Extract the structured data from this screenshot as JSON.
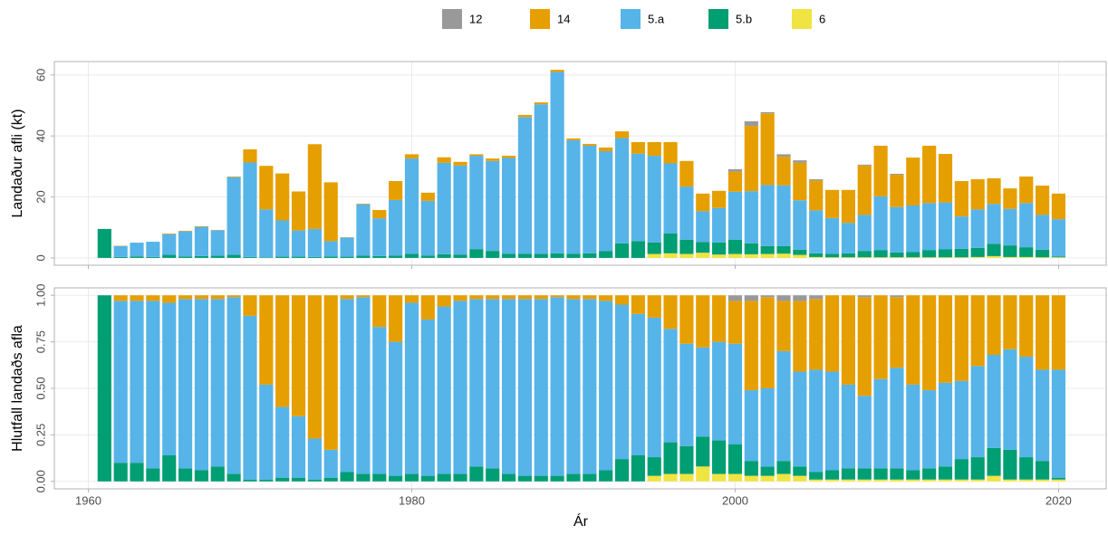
{
  "chart_data": [
    {
      "type": "bar",
      "stacked": true,
      "ylabel": "Landaður afli (kt)",
      "x": [
        1961,
        1962,
        1963,
        1964,
        1965,
        1966,
        1967,
        1968,
        1969,
        1970,
        1971,
        1972,
        1973,
        1974,
        1975,
        1976,
        1977,
        1978,
        1979,
        1980,
        1981,
        1982,
        1983,
        1984,
        1985,
        1986,
        1987,
        1988,
        1989,
        1990,
        1991,
        1992,
        1993,
        1994,
        1995,
        1996,
        1997,
        1998,
        1999,
        2000,
        2001,
        2002,
        2003,
        2004,
        2005,
        2006,
        2007,
        2008,
        2009,
        2010,
        2011,
        2012,
        2013,
        2014,
        2015,
        2016,
        2017,
        2018,
        2019,
        2020
      ],
      "xlim": [
        1957.9,
        2023
      ],
      "xticks": [
        1960,
        1980,
        2000,
        2020
      ],
      "ylim": [
        -2.4,
        64.4
      ],
      "yticks": [
        0,
        20,
        40,
        60
      ],
      "grid": true,
      "series": [
        {
          "name": "12",
          "color": "#999999",
          "values": [
            0,
            0,
            0,
            0,
            0,
            0,
            0,
            0,
            0,
            0,
            0,
            0,
            0,
            0,
            0,
            0,
            0,
            0,
            0,
            0,
            0,
            0,
            0,
            0,
            0,
            0,
            0,
            0,
            0,
            0,
            0,
            0,
            0,
            0,
            0,
            0,
            0,
            0,
            0,
            0.8,
            1.5,
            0.4,
            0.8,
            0.8,
            0.4,
            0,
            0,
            0.3,
            0,
            0.3,
            0,
            0,
            0,
            0,
            0,
            0,
            0,
            0,
            0,
            0
          ]
        },
        {
          "name": "14",
          "color": "#E69F00",
          "values": [
            0,
            0.1,
            0,
            0,
            0.2,
            0.2,
            0.2,
            0.1,
            0.2,
            4.3,
            14.3,
            15.4,
            12.8,
            27.8,
            19.3,
            0.1,
            0.2,
            2.7,
            6.2,
            1.4,
            2.7,
            1.8,
            1.2,
            0.5,
            0.8,
            0.7,
            0.7,
            0.6,
            0.7,
            0.6,
            0.6,
            1.2,
            2.2,
            3.8,
            4.5,
            7,
            8.4,
            5.8,
            5.6,
            6.6,
            21.4,
            23.5,
            9.4,
            12.3,
            9.8,
            9.2,
            10.8,
            16.2,
            16.6,
            10.6,
            15.7,
            18.8,
            15.9,
            11.6,
            9.9,
            8.4,
            6.7,
            8.7,
            9.6,
            8.4
          ]
        },
        {
          "name": "5.a",
          "color": "#56B4E9",
          "values": [
            0,
            3.6,
            4.5,
            5,
            6.8,
            8.2,
            9.6,
            8.4,
            25.5,
            31,
            15.7,
            11.9,
            8.6,
            9.2,
            5,
            6.3,
            16.8,
            12.4,
            18.2,
            31.3,
            17.9,
            30,
            29.2,
            30.6,
            29.5,
            31.4,
            44.8,
            49.1,
            59.5,
            37.2,
            35.3,
            32.8,
            34.5,
            28.7,
            28.4,
            23,
            17.4,
            10.1,
            11.3,
            15.7,
            17.1,
            20,
            19.9,
            16.2,
            14.1,
            11.8,
            10,
            11.9,
            17.7,
            14.9,
            15.3,
            15.4,
            15.4,
            10.6,
            12.6,
            13.1,
            12,
            14.5,
            11.4,
            12.2
          ]
        },
        {
          "name": "5.b",
          "color": "#009E73",
          "values": [
            9.5,
            0.3,
            0.5,
            0.3,
            1,
            0.5,
            0.6,
            0.7,
            1,
            0.3,
            0.2,
            0.4,
            0.4,
            0.3,
            0.5,
            0.4,
            0.8,
            0.6,
            0.8,
            1.3,
            0.8,
            1.2,
            1.1,
            2.9,
            2.3,
            1.4,
            1.4,
            1.3,
            1.5,
            1.4,
            1.5,
            2.2,
            4.8,
            5.5,
            3.8,
            6.5,
            4.7,
            3.5,
            4,
            4.7,
            3.6,
            2.6,
            2.5,
            1.7,
            1.2,
            1.1,
            1.3,
            2,
            2.3,
            1.6,
            1.7,
            2.4,
            2.6,
            2.8,
            3,
            4,
            3.8,
            3.2,
            2.5,
            0.3
          ]
        },
        {
          "name": "6",
          "color": "#F0E442",
          "values": [
            0,
            0,
            0,
            0,
            0,
            0,
            0,
            0,
            0,
            0,
            0,
            0,
            0,
            0,
            0,
            0,
            0,
            0,
            0,
            0,
            0,
            0,
            0,
            0,
            0,
            0,
            0,
            0,
            0,
            0,
            0,
            0,
            0,
            0,
            1.3,
            1.5,
            1.3,
            1.7,
            1.1,
            1.3,
            1.2,
            1.3,
            1.4,
            1,
            0.3,
            0.2,
            0.2,
            0.2,
            0.2,
            0.2,
            0.2,
            0.2,
            0.2,
            0.2,
            0.3,
            0.6,
            0.3,
            0.3,
            0.2,
            0.2
          ]
        }
      ]
    },
    {
      "type": "bar",
      "stacked": true,
      "ylabel": "Hlutfall landaðs afla",
      "xlabel": "Ár",
      "x": [
        1961,
        1962,
        1963,
        1964,
        1965,
        1966,
        1967,
        1968,
        1969,
        1970,
        1971,
        1972,
        1973,
        1974,
        1975,
        1976,
        1977,
        1978,
        1979,
        1980,
        1981,
        1982,
        1983,
        1984,
        1985,
        1986,
        1987,
        1988,
        1989,
        1990,
        1991,
        1992,
        1993,
        1994,
        1995,
        1996,
        1997,
        1998,
        1999,
        2000,
        2001,
        2002,
        2003,
        2004,
        2005,
        2006,
        2007,
        2008,
        2009,
        2010,
        2011,
        2012,
        2013,
        2014,
        2015,
        2016,
        2017,
        2018,
        2019,
        2020
      ],
      "xlim": [
        1957.9,
        2023
      ],
      "xticks": [
        1960,
        1980,
        2000,
        2020
      ],
      "ylim": [
        -0.04,
        1.04
      ],
      "yticks": [
        {
          "value": 0,
          "label": "0.00"
        },
        {
          "value": 0.25,
          "label": "0.25"
        },
        {
          "value": 0.5,
          "label": "0.50"
        },
        {
          "value": 0.75,
          "label": "0.75"
        },
        {
          "value": 1,
          "label": "1.00"
        }
      ],
      "grid": true,
      "series": [
        {
          "color": "#999999",
          "values": [
            0,
            0,
            0,
            0,
            0,
            0,
            0,
            0,
            0,
            0,
            0,
            0,
            0,
            0,
            0,
            0,
            0,
            0,
            0,
            0,
            0,
            0,
            0,
            0,
            0,
            0,
            0,
            0,
            0,
            0,
            0,
            0,
            0,
            0,
            0,
            0,
            0,
            0,
            0,
            0.03,
            0.03,
            0.01,
            0.03,
            0.03,
            0.02,
            0,
            0,
            0.01,
            0,
            0.01,
            0,
            0,
            0,
            0,
            0,
            0,
            0,
            0,
            0,
            0
          ]
        },
        {
          "color": "#E69F00",
          "values": [
            0,
            0.03,
            0.03,
            0.03,
            0.04,
            0.02,
            0.02,
            0.02,
            0.01,
            0.11,
            0.48,
            0.6,
            0.65,
            0.77,
            0.83,
            0.02,
            0.01,
            0.17,
            0.25,
            0.04,
            0.13,
            0.06,
            0.03,
            0.02,
            0.02,
            0.02,
            0.02,
            0.02,
            0.01,
            0.02,
            0.02,
            0.03,
            0.05,
            0.1,
            0.12,
            0.18,
            0.26,
            0.28,
            0.25,
            0.23,
            0.48,
            0.49,
            0.27,
            0.38,
            0.38,
            0.41,
            0.48,
            0.53,
            0.45,
            0.38,
            0.48,
            0.51,
            0.47,
            0.46,
            0.38,
            0.32,
            0.29,
            0.33,
            0.4,
            0.4
          ]
        },
        {
          "color": "#56B4E9",
          "values": [
            0,
            0.87,
            0.87,
            0.9,
            0.82,
            0.91,
            0.92,
            0.9,
            0.95,
            0.88,
            0.51,
            0.38,
            0.33,
            0.22,
            0.15,
            0.93,
            0.95,
            0.79,
            0.72,
            0.92,
            0.84,
            0.9,
            0.93,
            0.9,
            0.91,
            0.94,
            0.95,
            0.95,
            0.96,
            0.94,
            0.94,
            0.91,
            0.83,
            0.76,
            0.75,
            0.61,
            0.55,
            0.48,
            0.53,
            0.54,
            0.38,
            0.42,
            0.59,
            0.51,
            0.55,
            0.53,
            0.45,
            0.39,
            0.48,
            0.54,
            0.46,
            0.42,
            0.45,
            0.42,
            0.49,
            0.5,
            0.54,
            0.54,
            0.49,
            0.58
          ]
        },
        {
          "color": "#009E73",
          "values": [
            1,
            0.1,
            0.1,
            0.07,
            0.14,
            0.07,
            0.06,
            0.08,
            0.04,
            0.01,
            0.01,
            0.02,
            0.02,
            0.01,
            0.02,
            0.05,
            0.04,
            0.04,
            0.03,
            0.04,
            0.03,
            0.04,
            0.04,
            0.08,
            0.07,
            0.04,
            0.03,
            0.03,
            0.03,
            0.04,
            0.04,
            0.06,
            0.12,
            0.14,
            0.1,
            0.17,
            0.15,
            0.16,
            0.18,
            0.16,
            0.08,
            0.05,
            0.07,
            0.05,
            0.04,
            0.05,
            0.06,
            0.06,
            0.06,
            0.06,
            0.05,
            0.06,
            0.07,
            0.11,
            0.12,
            0.15,
            0.16,
            0.12,
            0.1,
            0.01
          ]
        },
        {
          "color": "#F0E442",
          "values": [
            0,
            0,
            0,
            0,
            0,
            0,
            0,
            0,
            0,
            0,
            0,
            0,
            0,
            0,
            0,
            0,
            0,
            0,
            0,
            0,
            0,
            0,
            0,
            0,
            0,
            0,
            0,
            0,
            0,
            0,
            0,
            0,
            0,
            0,
            0.03,
            0.04,
            0.04,
            0.08,
            0.04,
            0.04,
            0.03,
            0.03,
            0.04,
            0.03,
            0.01,
            0.01,
            0.01,
            0.01,
            0.01,
            0.01,
            0.01,
            0.01,
            0.01,
            0.01,
            0.01,
            0.03,
            0.01,
            0.01,
            0.01,
            0.01
          ]
        }
      ]
    }
  ]
}
